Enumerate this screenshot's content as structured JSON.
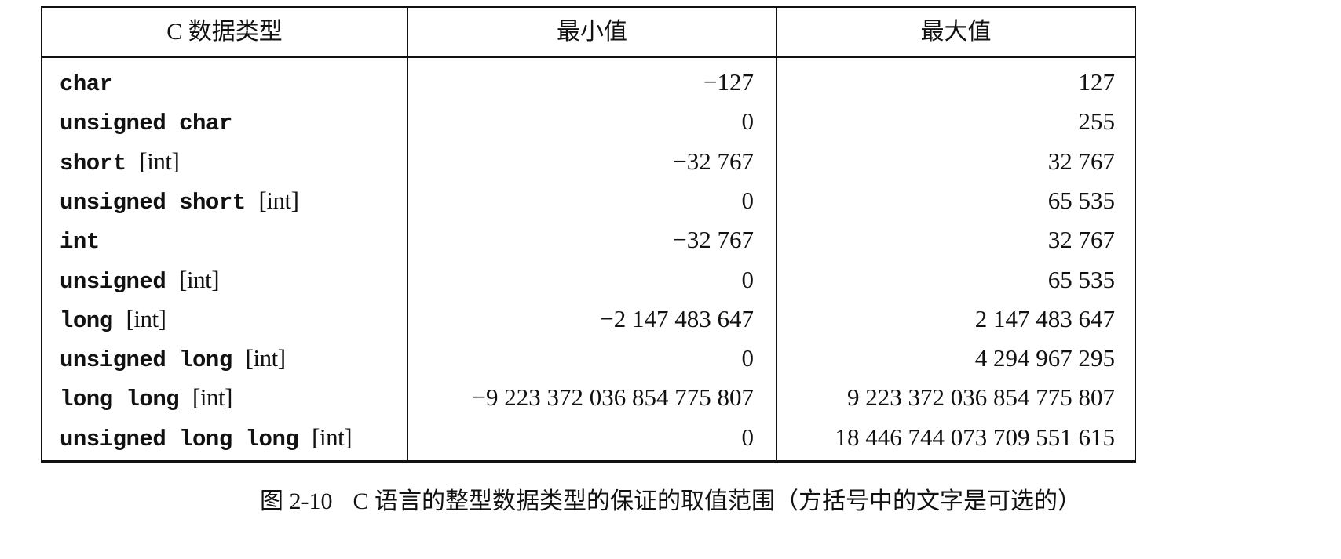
{
  "table": {
    "headers": [
      "C 数据类型",
      "最小值",
      "最大值"
    ],
    "rows": [
      {
        "type": "char",
        "optional": "",
        "min": "−127",
        "max": "127"
      },
      {
        "type": "unsigned char",
        "optional": "",
        "min": "0",
        "max": "255"
      },
      {
        "type": "short",
        "optional": "[int]",
        "min": "−32 767",
        "max": "32 767"
      },
      {
        "type": "unsigned short",
        "optional": "[int]",
        "min": "0",
        "max": "65 535"
      },
      {
        "type": "int",
        "optional": "",
        "min": "−32 767",
        "max": "32 767"
      },
      {
        "type": "unsigned",
        "optional": "[int]",
        "min": "0",
        "max": "65 535"
      },
      {
        "type": "long",
        "optional": "[int]",
        "min": "−2 147 483 647",
        "max": "2 147 483 647"
      },
      {
        "type": "unsigned long",
        "optional": "[int]",
        "min": "0",
        "max": "4 294 967 295"
      },
      {
        "type": "long long",
        "optional": "[int]",
        "min": "−9 223 372 036 854 775 807",
        "max": "9 223 372 036 854 775 807"
      },
      {
        "type": "unsigned long long",
        "optional": "[int]",
        "min": "0",
        "max": "18 446 744 073 709 551 615"
      }
    ]
  },
  "caption": {
    "number": "图 2-10",
    "text": "C 语言的整型数据类型的保证的取值范围（方括号中的文字是可选的）"
  }
}
